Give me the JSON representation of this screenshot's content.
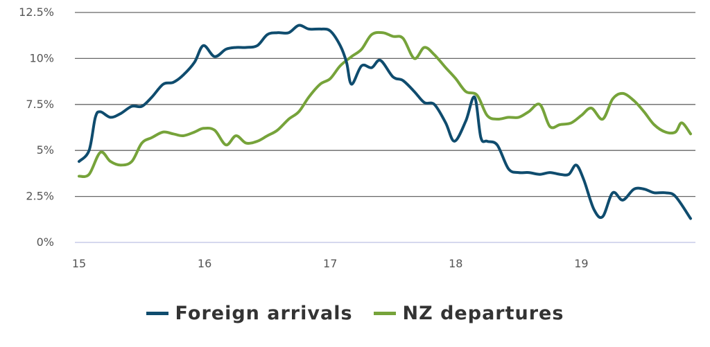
{
  "chart_data": {
    "type": "line",
    "title": "",
    "xlabel": "",
    "ylabel": "",
    "xlim": [
      15,
      19.9
    ],
    "ylim": [
      0,
      12.5
    ],
    "grid": true,
    "legend_position": "bottom-center",
    "y_ticks": [
      {
        "value": 0,
        "label": "0%"
      },
      {
        "value": 2.5,
        "label": "2.5%"
      },
      {
        "value": 5,
        "label": "5%"
      },
      {
        "value": 7.5,
        "label": "7.5%"
      },
      {
        "value": 10,
        "label": "10%"
      },
      {
        "value": 12.5,
        "label": "12.5%"
      }
    ],
    "x_ticks": [
      {
        "value": 15,
        "label": "15"
      },
      {
        "value": 16,
        "label": "16"
      },
      {
        "value": 17,
        "label": "17"
      },
      {
        "value": 18,
        "label": "18"
      },
      {
        "value": 19,
        "label": "19"
      }
    ],
    "colors": {
      "grid": "#666666",
      "baseline": "#c7cbe8",
      "tick_text": "#555555"
    },
    "series": [
      {
        "name": "Foreign arrivals",
        "color": "#0f4c6e",
        "points": [
          [
            15.0,
            4.4
          ],
          [
            15.08,
            5.0
          ],
          [
            15.13,
            6.8
          ],
          [
            15.17,
            7.1
          ],
          [
            15.25,
            6.8
          ],
          [
            15.33,
            7.0
          ],
          [
            15.42,
            7.4
          ],
          [
            15.5,
            7.4
          ],
          [
            15.58,
            7.9
          ],
          [
            15.67,
            8.6
          ],
          [
            15.75,
            8.7
          ],
          [
            15.83,
            9.1
          ],
          [
            15.92,
            9.8
          ],
          [
            15.99,
            10.7
          ],
          [
            16.08,
            10.1
          ],
          [
            16.17,
            10.5
          ],
          [
            16.25,
            10.6
          ],
          [
            16.33,
            10.6
          ],
          [
            16.42,
            10.7
          ],
          [
            16.5,
            11.3
          ],
          [
            16.58,
            11.4
          ],
          [
            16.67,
            11.4
          ],
          [
            16.75,
            11.8
          ],
          [
            16.83,
            11.6
          ],
          [
            16.92,
            11.6
          ],
          [
            17.0,
            11.5
          ],
          [
            17.08,
            10.7
          ],
          [
            17.13,
            9.8
          ],
          [
            17.17,
            8.6
          ],
          [
            17.25,
            9.6
          ],
          [
            17.33,
            9.5
          ],
          [
            17.4,
            9.9
          ],
          [
            17.5,
            9.0
          ],
          [
            17.58,
            8.8
          ],
          [
            17.67,
            8.2
          ],
          [
            17.75,
            7.6
          ],
          [
            17.83,
            7.5
          ],
          [
            17.92,
            6.5
          ],
          [
            17.99,
            5.5
          ],
          [
            18.08,
            6.6
          ],
          [
            18.15,
            7.9
          ],
          [
            18.2,
            5.7
          ],
          [
            18.25,
            5.5
          ],
          [
            18.33,
            5.3
          ],
          [
            18.42,
            4.0
          ],
          [
            18.5,
            3.8
          ],
          [
            18.58,
            3.8
          ],
          [
            18.67,
            3.7
          ],
          [
            18.75,
            3.8
          ],
          [
            18.83,
            3.7
          ],
          [
            18.9,
            3.7
          ],
          [
            18.96,
            4.2
          ],
          [
            19.02,
            3.4
          ],
          [
            19.1,
            1.8
          ],
          [
            19.17,
            1.4
          ],
          [
            19.25,
            2.7
          ],
          [
            19.33,
            2.3
          ],
          [
            19.42,
            2.9
          ],
          [
            19.5,
            2.9
          ],
          [
            19.58,
            2.7
          ],
          [
            19.67,
            2.7
          ],
          [
            19.75,
            2.5
          ],
          [
            19.87,
            1.3
          ]
        ]
      },
      {
        "name": "NZ departures",
        "color": "#76a33a",
        "points": [
          [
            15.0,
            3.6
          ],
          [
            15.08,
            3.7
          ],
          [
            15.17,
            4.9
          ],
          [
            15.25,
            4.4
          ],
          [
            15.33,
            4.2
          ],
          [
            15.42,
            4.4
          ],
          [
            15.5,
            5.4
          ],
          [
            15.58,
            5.7
          ],
          [
            15.67,
            6.0
          ],
          [
            15.75,
            5.9
          ],
          [
            15.83,
            5.8
          ],
          [
            15.92,
            6.0
          ],
          [
            15.99,
            6.2
          ],
          [
            16.08,
            6.1
          ],
          [
            16.17,
            5.3
          ],
          [
            16.25,
            5.8
          ],
          [
            16.33,
            5.4
          ],
          [
            16.42,
            5.5
          ],
          [
            16.5,
            5.8
          ],
          [
            16.58,
            6.1
          ],
          [
            16.67,
            6.7
          ],
          [
            16.75,
            7.1
          ],
          [
            16.83,
            7.9
          ],
          [
            16.92,
            8.6
          ],
          [
            17.0,
            8.9
          ],
          [
            17.08,
            9.6
          ],
          [
            17.17,
            10.1
          ],
          [
            17.25,
            10.5
          ],
          [
            17.33,
            11.3
          ],
          [
            17.42,
            11.4
          ],
          [
            17.5,
            11.2
          ],
          [
            17.58,
            11.1
          ],
          [
            17.67,
            10.0
          ],
          [
            17.75,
            10.6
          ],
          [
            17.83,
            10.2
          ],
          [
            17.92,
            9.5
          ],
          [
            18.0,
            8.9
          ],
          [
            18.08,
            8.2
          ],
          [
            18.17,
            8.0
          ],
          [
            18.25,
            6.9
          ],
          [
            18.33,
            6.7
          ],
          [
            18.42,
            6.8
          ],
          [
            18.5,
            6.8
          ],
          [
            18.58,
            7.1
          ],
          [
            18.67,
            7.5
          ],
          [
            18.75,
            6.3
          ],
          [
            18.83,
            6.4
          ],
          [
            18.92,
            6.5
          ],
          [
            19.0,
            6.9
          ],
          [
            19.08,
            7.3
          ],
          [
            19.17,
            6.7
          ],
          [
            19.25,
            7.8
          ],
          [
            19.33,
            8.1
          ],
          [
            19.42,
            7.7
          ],
          [
            19.5,
            7.1
          ],
          [
            19.58,
            6.4
          ],
          [
            19.67,
            6.0
          ],
          [
            19.75,
            6.0
          ],
          [
            19.8,
            6.5
          ],
          [
            19.87,
            5.9
          ]
        ]
      }
    ]
  }
}
